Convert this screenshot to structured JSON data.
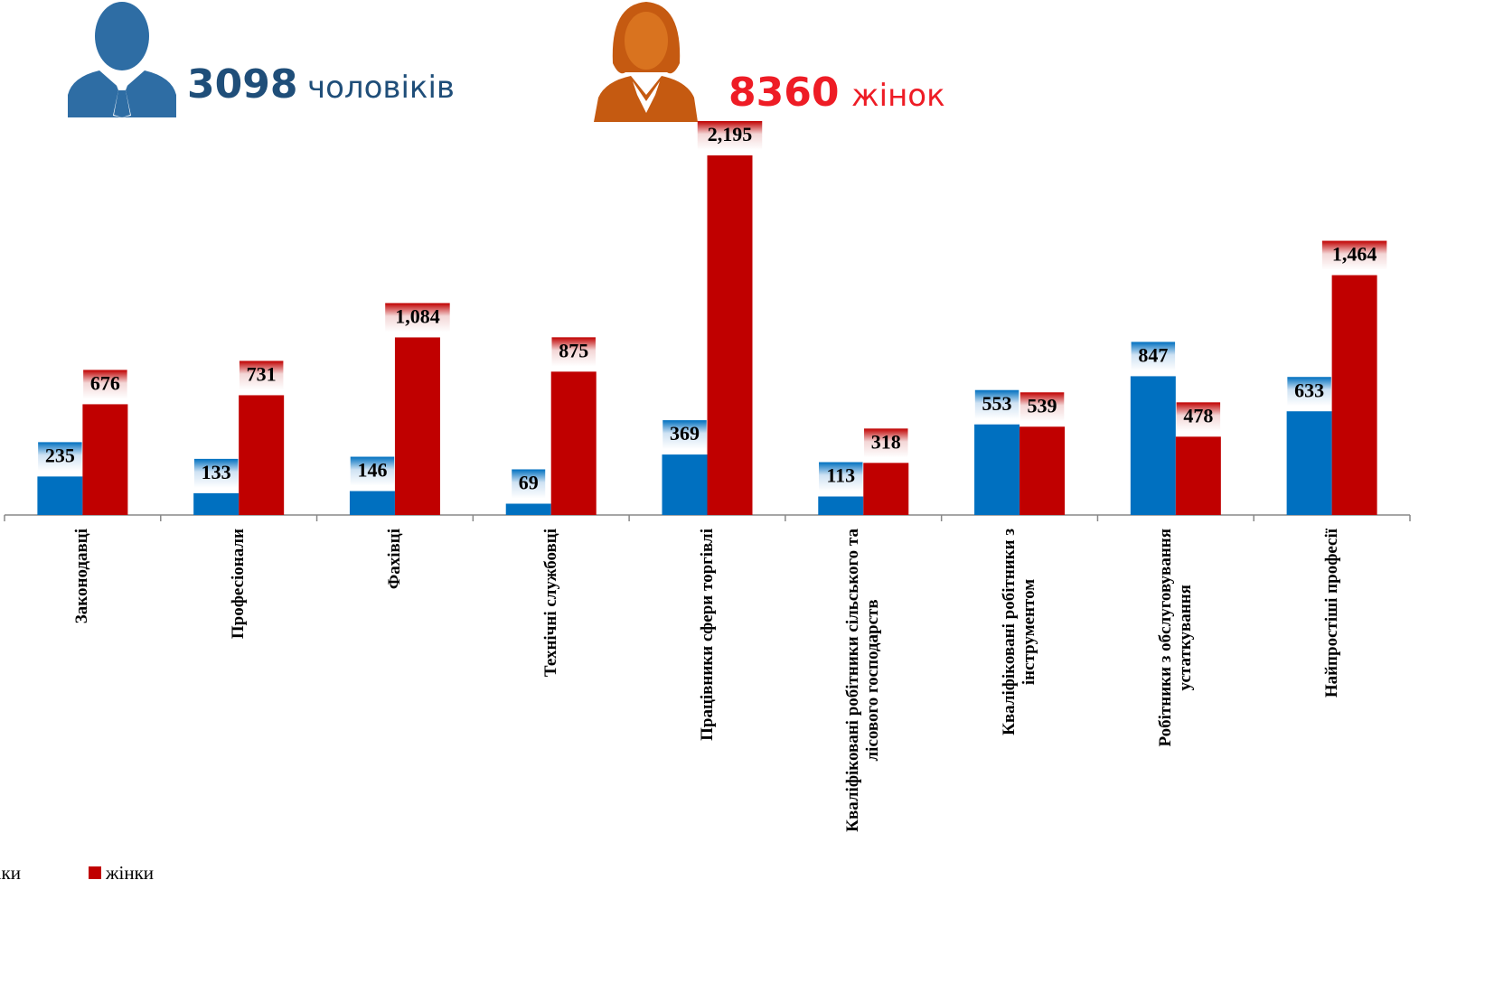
{
  "chart_data": {
    "type": "bar",
    "annotations": [
      "3098",
      "чоловіків",
      "8360",
      "жінок"
    ],
    "categories": [
      "Законодавці",
      "Професіонали",
      "Фахівці",
      "Технічні службовці",
      "Працівники сфери торгівлі",
      "Кваліфіковані робітники сільського та\nлісового господарств",
      "Кваліфіковані робітники з\nінструментом",
      "Робітники  з обслуговування\nустаткування",
      "Найпростіші професії"
    ],
    "series": [
      {
        "name": "чоловіки",
        "color": "#0070c0",
        "values": [
          235,
          133,
          146,
          69,
          369,
          113,
          553,
          847,
          633
        ]
      },
      {
        "name": "жінки",
        "color": "#c00000",
        "values": [
          676,
          731,
          1084,
          875,
          2195,
          318,
          539,
          478,
          1464
        ],
        "value_labels": [
          "676",
          "731",
          "1,084",
          "875",
          "2,195",
          "318",
          "539",
          "478",
          "1,464"
        ]
      }
    ],
    "legend": "bottom-left"
  }
}
